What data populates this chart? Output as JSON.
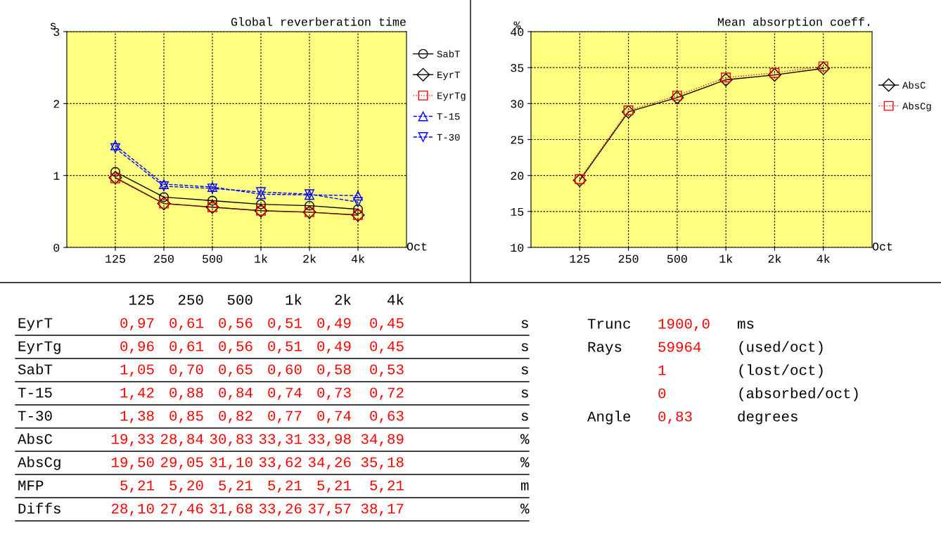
{
  "chart_data": [
    {
      "type": "line",
      "title": "Global reverberation time",
      "ylabel": "s",
      "xlabel": "Oct",
      "categories": [
        "125",
        "250",
        "500",
        "1k",
        "2k",
        "4k"
      ],
      "ylim": [
        0,
        3
      ],
      "yticks": [
        0,
        1,
        2,
        3
      ],
      "grid": true,
      "legend": "right",
      "series": [
        {
          "name": "SabT",
          "color": "#000000",
          "marker": "circle",
          "line_style": "solid",
          "values": [
            1.05,
            0.7,
            0.65,
            0.6,
            0.58,
            0.53
          ]
        },
        {
          "name": "EyrT",
          "color": "#000000",
          "marker": "diamond",
          "line_style": "solid",
          "values": [
            0.97,
            0.61,
            0.56,
            0.51,
            0.49,
            0.45
          ]
        },
        {
          "name": "EyrTg",
          "color": "#ff0000",
          "marker": "square",
          "line_style": "dotted",
          "values": [
            0.96,
            0.61,
            0.56,
            0.51,
            0.49,
            0.45
          ]
        },
        {
          "name": "T-15",
          "color": "#0000ff",
          "marker": "triangle",
          "line_style": "dashed",
          "values": [
            1.42,
            0.88,
            0.84,
            0.74,
            0.73,
            0.72
          ]
        },
        {
          "name": "T-30",
          "color": "#0000ff",
          "marker": "triangle_down",
          "line_style": "dashed",
          "values": [
            1.38,
            0.85,
            0.82,
            0.77,
            0.74,
            0.63
          ]
        }
      ]
    },
    {
      "type": "line",
      "title": "Mean absorption coeff.",
      "ylabel": "%",
      "xlabel": "Oct",
      "categories": [
        "125",
        "250",
        "500",
        "1k",
        "2k",
        "4k"
      ],
      "ylim": [
        10,
        40
      ],
      "yticks": [
        10,
        15,
        20,
        25,
        30,
        35,
        40
      ],
      "grid": true,
      "legend": "right",
      "series": [
        {
          "name": "AbsC",
          "color": "#000000",
          "marker": "diamond",
          "line_style": "solid",
          "values": [
            19.33,
            28.84,
            30.83,
            33.31,
            33.98,
            34.89
          ]
        },
        {
          "name": "AbsCg",
          "color": "#ff0000",
          "marker": "square",
          "line_style": "dotted",
          "values": [
            19.5,
            29.05,
            31.1,
            33.62,
            34.26,
            35.18
          ]
        }
      ]
    },
    {
      "type": "other",
      "annotations": [
        "125 250 500 1k 2k 4k",
        "EyrT 0,97 0,61 0,56 0,51 0,49 0,45 s",
        "EyrTg 0,96 0,61 0,56 0,51 0,49 0,45 s",
        "SabT 1,05 0,70 0,65 0,60 0,58 0,53 s",
        "T-15 1,42 0,88 0,84 0,74 0,73 0,72 s",
        "T-30 1,38 0,85 0,82 0,77 0,74 0,63 s",
        "AbsC 19,33 28,84 30,83 33,31 33,98 34,89 %",
        "AbsCg 19,50 29,05 31,10 33,62 34,26 35,18 %",
        "MFP 5,21 5,20 5,21 5,21 5,21 5,21 m",
        "Diffs 28,10 27,46 31,68 33,26 37,57 38,17 %"
      ]
    },
    {
      "type": "other",
      "annotations": [
        "Trunc 1900,0 ms",
        "Rays 59964 (used/oct)",
        "1 (lost/oct)",
        "0 (absorbed/oct)",
        "Angle 0,83 degrees"
      ]
    }
  ]
}
